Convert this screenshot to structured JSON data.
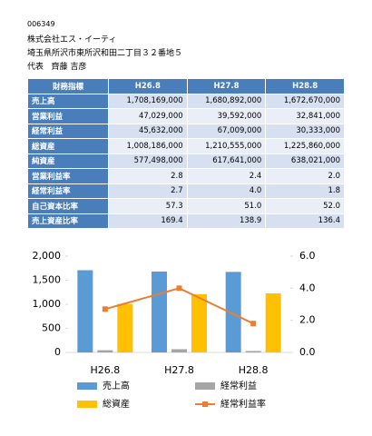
{
  "header": {
    "code": "006349",
    "company": "株式会社エス・イーティ",
    "address": "埼玉県所沢市東所沢和田二丁目３２番地５",
    "rep_label": "代表",
    "rep_name": "齊藤 吉彦"
  },
  "table": {
    "header": [
      "財務指標",
      "H26.8",
      "H27.8",
      "H28.8"
    ],
    "rows": [
      [
        "売上高",
        "1,708,169,000",
        "1,680,892,000",
        "1,672,670,000"
      ],
      [
        "営業利益",
        "47,029,000",
        "39,592,000",
        "32,841,000"
      ],
      [
        "経常利益",
        "45,632,000",
        "67,009,000",
        "30,333,000"
      ],
      [
        "総資産",
        "1,008,186,000",
        "1,210,555,000",
        "1,225,860,000"
      ],
      [
        "純資産",
        "577,498,000",
        "617,641,000",
        "638,021,000"
      ],
      [
        "営業利益率",
        "2.8",
        "2.4",
        "2.0"
      ],
      [
        "経常利益率",
        "2.7",
        "4.0",
        "1.8"
      ],
      [
        "自己資本比率",
        "57.3",
        "51.0",
        "52.0"
      ],
      [
        "売上資産比率",
        "169.4",
        "138.9",
        "136.4"
      ]
    ]
  },
  "chart_data": {
    "type": "bar-line",
    "categories": [
      "H26.8",
      "H27.8",
      "H28.8"
    ],
    "series": [
      {
        "name": "売上高",
        "color": "#5b9bd5",
        "type": "bar",
        "values": [
          1708,
          1681,
          1673
        ]
      },
      {
        "name": "経常利益",
        "color": "#a5a5a5",
        "type": "bar",
        "values": [
          46,
          67,
          30
        ]
      },
      {
        "name": "総資産",
        "color": "#ffc000",
        "type": "bar",
        "values": [
          1008,
          1211,
          1226
        ]
      },
      {
        "name": "経常利益率",
        "color": "#ed7d31",
        "type": "line",
        "axis": "y2",
        "values": [
          2.7,
          4.0,
          1.8
        ]
      }
    ],
    "ylim": [
      0,
      2000
    ],
    "yticks": [
      0,
      500,
      {
        "value": 1000,
        "label": "1,000"
      },
      {
        "value": 1500,
        "label": "1,500"
      },
      {
        "value": 2000,
        "label": "2,000"
      }
    ],
    "y2lim": [
      0,
      6
    ],
    "y2ticks": [
      {
        "value": 0,
        "label": "0.0"
      },
      {
        "value": 2,
        "label": "2.0"
      },
      {
        "value": 4,
        "label": "4.0"
      },
      {
        "value": 6,
        "label": "6.0"
      }
    ]
  }
}
